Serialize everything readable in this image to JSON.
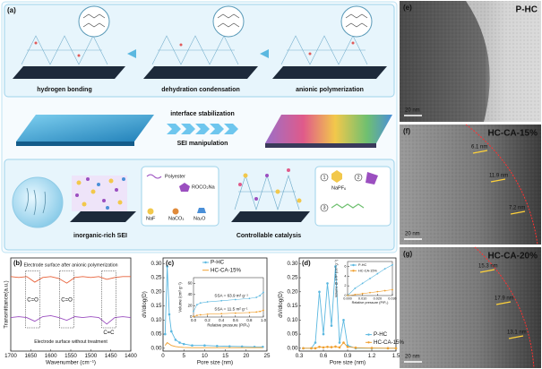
{
  "schematic": {
    "panel": "(a)",
    "steps": [
      "hydrogen bonding",
      "dehydration condensation",
      "anionic polymerization"
    ],
    "middle": [
      "interface stabilization",
      "SEI manipulation"
    ],
    "bottom": [
      "inorganic-rich SEI",
      "Controllable catalysis"
    ],
    "species": [
      "Polyester",
      "ROCO₂Na",
      "NaF",
      "NaCO₃",
      "Na₂O"
    ],
    "reagents": {
      "numbers": [
        "1",
        "2",
        "3"
      ],
      "names": [
        "NaPF₆"
      ]
    }
  },
  "chart_data": [
    {
      "type": "line",
      "panel": "(b)",
      "xlabel": "Wavenumber (cm⁻¹)",
      "ylabel": "Transmittance(a.u.)",
      "x": [
        1700,
        1680,
        1660,
        1640,
        1620,
        1600,
        1580,
        1560,
        1540,
        1520,
        1500,
        1480,
        1460,
        1440,
        1420,
        1400
      ],
      "xlim": [
        1700,
        1400
      ],
      "xticks": [
        1700,
        1650,
        1600,
        1550,
        1500,
        1450,
        1400
      ],
      "ylim": [
        0,
        1
      ],
      "series": [
        {
          "name": "Electrode surface after anionic polymerization",
          "color": "#e8623a",
          "values": [
            0.8,
            0.79,
            0.8,
            0.74,
            0.79,
            0.8,
            0.78,
            0.73,
            0.79,
            0.8,
            0.79,
            0.8,
            0.77,
            0.79,
            0.8,
            0.8
          ]
        },
        {
          "name": "Electrode surface without treatment",
          "color": "#9b4fc0",
          "values": [
            0.36,
            0.37,
            0.36,
            0.32,
            0.37,
            0.38,
            0.36,
            0.33,
            0.37,
            0.36,
            0.37,
            0.36,
            0.29,
            0.36,
            0.37,
            0.36
          ]
        }
      ],
      "annotations": [
        "C=O",
        "C=O",
        "C=C"
      ]
    },
    {
      "type": "line",
      "panel": "(c)",
      "xlabel": "Pore size (nm)",
      "ylabel": "dV/dlog(D)",
      "x": [
        0.5,
        1,
        1.5,
        2,
        3,
        4,
        5,
        7,
        10,
        13,
        16,
        19,
        22,
        24
      ],
      "xlim": [
        0,
        25
      ],
      "xticks": [
        0,
        5,
        10,
        15,
        20,
        25
      ],
      "ylim": [
        -0.01,
        0.32
      ],
      "yticks": [
        {
          "value": 0,
          "label": "0.00"
        },
        0.05,
        {
          "value": 0.1,
          "label": "0.10"
        },
        0.15,
        {
          "value": 0.2,
          "label": "0.20"
        },
        0.25,
        {
          "value": 0.3,
          "label": "0.30"
        }
      ],
      "legend": "upper center",
      "series": [
        {
          "name": "P-HC",
          "color": "#5bb8e0",
          "marker": "circle",
          "values": [
            0.05,
            0.29,
            0.12,
            0.06,
            0.03,
            0.02,
            0.015,
            0.01,
            0.01,
            0.008,
            0.007,
            0.006,
            0.005,
            0.005
          ]
        },
        {
          "name": "HC-CA-15%",
          "color": "#f0a030",
          "values": [
            0.01,
            0.02,
            0.015,
            0.01,
            0.006,
            0.004,
            0.003,
            0.002,
            0.002,
            0.002,
            0.002,
            0.002,
            0.002,
            0.002
          ]
        }
      ]
    },
    {
      "type": "line",
      "xlabel": "Relative pressure (P/P₀)",
      "ylabel": "Volume (cm³ g⁻¹)",
      "x": [
        0,
        0.05,
        0.1,
        0.2,
        0.4,
        0.6,
        0.8,
        0.9,
        0.95,
        1.0
      ],
      "xlim": [
        0,
        1
      ],
      "xticks": [
        {
          "value": 0,
          "label": "0.0"
        },
        0.2,
        0.4,
        0.6,
        0.8,
        {
          "value": 1,
          "label": "1.0"
        }
      ],
      "ylim": [
        0,
        70
      ],
      "yticks": [
        0,
        20,
        40,
        60
      ],
      "series": [
        {
          "name": "P-HC",
          "color": "#5bb8e0",
          "marker": "circle",
          "values": [
            10,
            22,
            25,
            27,
            29,
            31,
            33,
            35,
            38,
            44
          ]
        },
        {
          "name": "HC-CA-15%",
          "color": "#f0a030",
          "marker": "circle",
          "values": [
            1,
            3,
            4,
            5,
            6,
            7,
            8,
            9,
            10,
            12
          ]
        }
      ],
      "annotations": [
        "SSA = 63.9 m² g⁻¹",
        "SSA = 11.5 m² g⁻¹"
      ]
    },
    {
      "type": "line",
      "panel": "(d)",
      "xlabel": "Pore size (nm)",
      "ylabel": "dV/dlog(D)",
      "x": [
        0.35,
        0.45,
        0.5,
        0.55,
        0.6,
        0.65,
        0.7,
        0.75,
        0.8,
        0.85,
        0.9,
        1.0,
        1.2,
        1.4,
        1.5
      ],
      "xlim": [
        0.3,
        1.5
      ],
      "xticks": [
        0.3,
        0.6,
        0.9,
        1.2,
        1.5
      ],
      "ylim": [
        -0.01,
        0.32
      ],
      "yticks": [
        {
          "value": 0,
          "label": "0.00"
        },
        0.05,
        {
          "value": 0.1,
          "label": "0.10"
        },
        0.15,
        {
          "value": 0.2,
          "label": "0.20"
        },
        0.25,
        {
          "value": 0.3,
          "label": "0.30"
        }
      ],
      "legend": "lower right",
      "series": [
        {
          "name": "P-HC",
          "color": "#5bb8e0",
          "marker": "circle",
          "values": [
            0,
            0,
            0.02,
            0.2,
            0.05,
            0.23,
            0.08,
            0.29,
            0.02,
            0.1,
            0.01,
            0,
            0,
            0,
            0
          ]
        },
        {
          "name": "HC-CA-15%",
          "color": "#f0a030",
          "marker": "circle",
          "values": [
            0,
            0,
            0,
            0.005,
            0.003,
            0.005,
            0.004,
            0.006,
            0.003,
            0.02,
            0.005,
            0.002,
            0.001,
            0,
            0
          ]
        }
      ]
    },
    {
      "type": "line",
      "xlabel": "Relative pressure (P/P₀)",
      "ylabel": "Volume @ STP (cm³ g⁻¹)",
      "x": [
        0,
        0.005,
        0.01,
        0.015,
        0.02,
        0.025,
        0.03
      ],
      "xlim": [
        0,
        0.03
      ],
      "xticks": [
        {
          "value": 0,
          "label": "0.000"
        },
        {
          "value": 0.01,
          "label": "0.010"
        },
        {
          "value": 0.02,
          "label": "0.020"
        },
        {
          "value": 0.03,
          "label": "0.030"
        }
      ],
      "ylim": [
        0,
        7
      ],
      "yticks": [
        0,
        2,
        4,
        6
      ],
      "legend": "upper left",
      "series": [
        {
          "name": "P-HC",
          "color": "#5bb8e0",
          "marker": "circle",
          "values": [
            0,
            1.5,
            2.5,
            3.5,
            4.5,
            5.5,
            6.3
          ]
        },
        {
          "name": "HC-CA-15%",
          "color": "#f0a030",
          "marker": "circle",
          "values": [
            0,
            0.2,
            0.4,
            0.6,
            0.8,
            1.0,
            1.2
          ]
        }
      ]
    }
  ],
  "tem": [
    {
      "panel": "(e)",
      "title": "P-HC",
      "scale": "20 nm"
    },
    {
      "panel": "(f)",
      "title": "HC-CA-15%",
      "scale": "20 nm",
      "measures": [
        "6.1 nm",
        "11.9 nm",
        "7.2 nm"
      ]
    },
    {
      "panel": "(g)",
      "title": "HC-CA-20%",
      "scale": "20 nm",
      "measures": [
        "15.3 nm",
        "17.9 nm",
        "13.1 nm"
      ]
    }
  ]
}
